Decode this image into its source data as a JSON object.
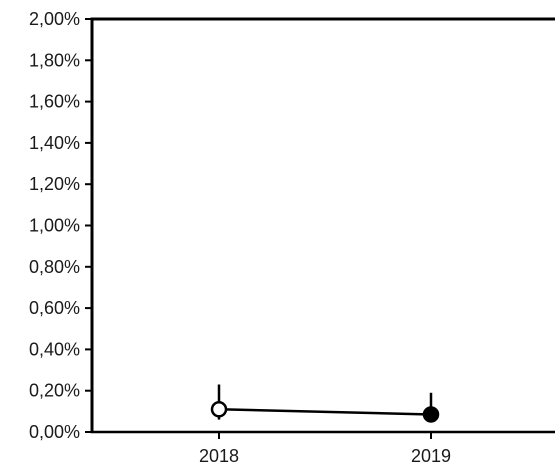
{
  "chart_data": {
    "type": "line",
    "categories": [
      "2018",
      "2019"
    ],
    "y_tick_labels": [
      "0,00%",
      "0,20%",
      "0,40%",
      "0,60%",
      "0,80%",
      "1,00%",
      "1,20%",
      "1,40%",
      "1,60%",
      "1,80%",
      "2,00%"
    ],
    "y_ticks": [
      0,
      0.2,
      0.4,
      0.6,
      0.8,
      1.0,
      1.2,
      1.4,
      1.6,
      1.8,
      2.0
    ],
    "ylim": [
      0,
      2.0
    ],
    "series": [
      {
        "values": [
          0.11,
          0.085
        ],
        "error_low": [
          0.06,
          0.06
        ],
        "error_high": [
          0.23,
          0.19
        ],
        "markers": [
          "open-circle",
          "filled-circle"
        ]
      }
    ],
    "grid": false,
    "colors": {
      "line": "#000000",
      "axis": "#000000",
      "marker_fill_open": "#ffffff",
      "marker_fill_filled": "#000000"
    }
  }
}
